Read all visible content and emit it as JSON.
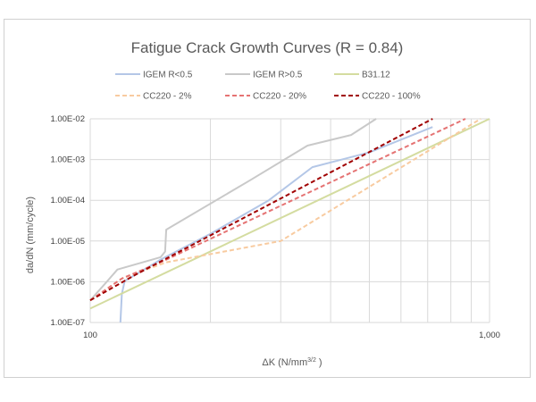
{
  "chart_data": {
    "type": "line",
    "title": "Fatigue Crack Growth Curves (R = 0.84)",
    "xlabel": "ΔK (N/mm",
    "xlabel_sup": "3/2",
    "xlabel_end": " )",
    "ylabel": "da/dN (mm/cycle)",
    "x_scale": "log",
    "y_scale": "log",
    "xlim": [
      100,
      1000
    ],
    "ylim": [
      1e-07,
      0.01
    ],
    "x_ticks": [
      {
        "value": 100,
        "label": "100"
      },
      {
        "value": 1000,
        "label": "1,000"
      }
    ],
    "y_ticks": [
      {
        "value": 1e-07,
        "label": "1.00E-07"
      },
      {
        "value": 1e-06,
        "label": "1.00E-06"
      },
      {
        "value": 1e-05,
        "label": "1.00E-05"
      },
      {
        "value": 0.0001,
        "label": "1.00E-04"
      },
      {
        "value": 0.001,
        "label": "1.00E-03"
      },
      {
        "value": 0.01,
        "label": "1.00E-02"
      }
    ],
    "grid": true,
    "legend_position": "top",
    "series": [
      {
        "name": "IGEM R<0.5",
        "color": "#b4c7e7",
        "dash": "solid",
        "points": [
          [
            119,
            1e-07
          ],
          [
            120,
            5e-07
          ],
          [
            122,
            1.05e-06
          ],
          [
            130,
            1.5e-06
          ],
          [
            150,
            3.5e-06
          ],
          [
            200,
            1.5e-05
          ],
          [
            280,
            0.0001
          ],
          [
            360,
            0.00065
          ],
          [
            500,
            0.0015
          ],
          [
            720,
            0.0063
          ]
        ]
      },
      {
        "name": "IGEM R>0.5",
        "color": "#c9c9c9",
        "dash": "solid",
        "points": [
          [
            100,
            3.5e-07
          ],
          [
            110,
            1e-06
          ],
          [
            117,
            2e-06
          ],
          [
            150,
            4e-06
          ],
          [
            154,
            5.5e-06
          ],
          [
            155,
            1.9e-05
          ],
          [
            250,
            0.0003
          ],
          [
            350,
            0.0022
          ],
          [
            450,
            0.004
          ],
          [
            520,
            0.01
          ]
        ]
      },
      {
        "name": "B31.12",
        "color": "#d4dca0",
        "dash": "solid",
        "points": [
          [
            100,
            2.2e-07
          ],
          [
            1000,
            0.01
          ]
        ]
      },
      {
        "name": "CC220 - 2%",
        "color": "#f8cba0",
        "dash": "dashed",
        "points": [
          [
            100,
            3.5e-07
          ],
          [
            120,
            1.2e-06
          ],
          [
            155,
            3e-06
          ],
          [
            300,
            1e-05
          ],
          [
            950,
            0.01
          ]
        ]
      },
      {
        "name": "CC220 - 20%",
        "color": "#e57373",
        "dash": "dashed",
        "points": [
          [
            100,
            3.5e-07
          ],
          [
            120,
            1.2e-06
          ],
          [
            150,
            3e-06
          ],
          [
            870,
            0.01
          ]
        ]
      },
      {
        "name": "CC220 - 100%",
        "color": "#a00000",
        "dash": "dashed",
        "points": [
          [
            100,
            3.5e-07
          ],
          [
            130,
            1.5e-06
          ],
          [
            720,
            0.01
          ]
        ]
      }
    ]
  }
}
